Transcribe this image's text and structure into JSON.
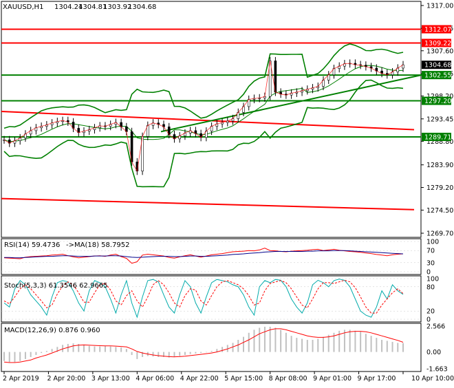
{
  "chart_data": [
    {
      "type": "candlestick",
      "title": "XAUUSD,H1",
      "ohlc": {
        "open": "1304.24",
        "high": "1304.81",
        "low": "1303.92",
        "close": "1304.68"
      },
      "y_ticks": [
        "1317.00",
        "1312.25",
        "1307.60",
        "1302.85",
        "1298.20",
        "1293.45",
        "1288.80",
        "1283.90",
        "1279.20",
        "1274.50",
        "1269.70"
      ],
      "ylim": [
        1269.7,
        1317.0
      ],
      "horizontal_levels": [
        {
          "label": "1312.07",
          "value": 1312.07,
          "color": "#ff0000"
        },
        {
          "label": "1309.22",
          "value": 1309.22,
          "color": "#ff0000"
        },
        {
          "label": "1302.55",
          "value": 1302.55,
          "color": "#008000"
        },
        {
          "label": "1297.20",
          "value": 1297.2,
          "color": "#008000"
        },
        {
          "label": "1289.71",
          "value": 1289.71,
          "color": "#008000"
        }
      ],
      "current_price": {
        "label": "1304.68",
        "value": 1304.68
      },
      "trend_lines": [
        {
          "color": "#ff0000",
          "points": [
            [
              0,
              1295.0
            ],
            [
              600,
              1291.2
            ]
          ]
        },
        {
          "color": "#ff0000",
          "points": [
            [
              0,
              1276.9
            ],
            [
              600,
              1274.6
            ]
          ]
        },
        {
          "color": "#008000",
          "points": [
            [
              232,
              1290.8
            ],
            [
              612,
              1302.6
            ]
          ]
        }
      ],
      "price_series": [
        1289.1,
        1288.4,
        1288.9,
        1289.5,
        1290.3,
        1291.0,
        1291.6,
        1291.9,
        1292.2,
        1292.6,
        1292.9,
        1293.1,
        1292.8,
        1291.5,
        1290.6,
        1290.9,
        1291.2,
        1291.6,
        1292.0,
        1291.9,
        1292.3,
        1292.7,
        1291.8,
        1290.8,
        1284.5,
        1282.6,
        1289.8,
        1292.1,
        1292.6,
        1292.3,
        1291.8,
        1290.2,
        1289.3,
        1289.9,
        1290.5,
        1291.0,
        1290.4,
        1289.6,
        1290.9,
        1291.9,
        1292.4,
        1292.7,
        1293.0,
        1293.5,
        1294.8,
        1296.0,
        1297.5,
        1297.7,
        1297.8,
        1298.1,
        1305.5,
        1299.0,
        1298.6,
        1298.4,
        1298.8,
        1299.0,
        1299.3,
        1299.6,
        1299.9,
        1300.2,
        1301.5,
        1302.6,
        1303.9,
        1304.4,
        1304.9,
        1305.0,
        1304.7,
        1304.6,
        1304.3,
        1304.0,
        1303.4,
        1302.9,
        1302.6,
        1303.2,
        1304.0,
        1304.68
      ],
      "series": [
        {
          "name": "Bollinger Bands",
          "color": "#008000"
        },
        {
          "name": "Moving Average",
          "color": "#ff0000"
        }
      ],
      "x_ticks": [
        "2 Apr 2019",
        "2 Apr 20:00",
        "3 Apr 13:00",
        "4 Apr 06:00",
        "4 Apr 22:00",
        "5 Apr 15:00",
        "8 Apr 08:00",
        "9 Apr 01:00",
        "9 Apr 17:00",
        "10 Apr 10:00"
      ]
    },
    {
      "type": "line",
      "title": "RSI(14) 59.4736",
      "subtitle": "->MA(18) 58.7952",
      "y_ticks": [
        "100",
        "70",
        "30",
        "0"
      ],
      "ylim": [
        0,
        100
      ],
      "series": [
        {
          "name": "RSI(14)",
          "color": "#ff0000",
          "values": [
            46,
            45,
            44,
            43,
            48,
            50,
            51,
            52,
            53,
            55,
            56,
            58,
            53,
            49,
            46,
            48,
            50,
            52,
            53,
            51,
            55,
            58,
            50,
            44,
            28,
            33,
            55,
            58,
            56,
            54,
            52,
            47,
            45,
            49,
            53,
            56,
            52,
            48,
            52,
            56,
            58,
            60,
            63,
            66,
            67,
            68,
            70,
            69,
            72,
            78,
            70,
            69,
            67,
            66,
            68,
            69,
            70,
            71,
            73,
            74,
            70,
            72,
            74,
            71,
            69,
            67,
            66,
            64,
            62,
            60,
            57,
            55,
            53,
            56,
            58,
            59
          ]
        },
        {
          "name": "MA(18)",
          "color": "#00008b",
          "values": [
            47,
            47,
            46,
            46,
            47,
            48,
            49,
            50,
            51,
            51,
            52,
            53,
            53,
            52,
            51,
            51,
            51,
            52,
            52,
            52,
            53,
            53,
            52,
            50,
            48,
            47,
            48,
            49,
            50,
            51,
            51,
            51,
            50,
            50,
            51,
            52,
            52,
            51,
            51,
            52,
            53,
            54,
            55,
            57,
            58,
            59,
            61,
            62,
            63,
            65,
            66,
            67,
            67,
            67,
            67,
            67,
            67,
            68,
            68,
            69,
            69,
            69,
            70,
            70,
            70,
            69,
            68,
            67,
            66,
            65,
            64,
            63,
            62,
            61,
            60,
            59
          ]
        }
      ]
    },
    {
      "type": "line",
      "title": "Stoch(5,3,3) 61.3546 62.9665",
      "y_ticks": [
        "100",
        "80",
        "20",
        "0"
      ],
      "ylim": [
        0,
        100
      ],
      "series": [
        {
          "name": "Main",
          "color": "#00aaaa",
          "values": [
            40,
            30,
            75,
            95,
            85,
            60,
            45,
            30,
            10,
            55,
            90,
            95,
            92,
            70,
            40,
            20,
            70,
            95,
            90,
            80,
            50,
            15,
            60,
            95,
            40,
            5,
            55,
            95,
            98,
            92,
            60,
            30,
            15,
            60,
            95,
            80,
            40,
            15,
            55,
            90,
            98,
            95,
            92,
            85,
            80,
            60,
            30,
            10,
            80,
            95,
            90,
            98,
            96,
            80,
            50,
            30,
            15,
            40,
            85,
            96,
            90,
            80,
            95,
            99,
            96,
            80,
            50,
            20,
            10,
            5,
            30,
            70,
            50,
            85,
            70,
            61
          ]
        },
        {
          "name": "Signal",
          "color": "#ff0000",
          "values": [
            45,
            38,
            55,
            75,
            85,
            75,
            60,
            45,
            28,
            35,
            62,
            82,
            92,
            85,
            65,
            42,
            42,
            65,
            85,
            88,
            72,
            45,
            35,
            58,
            70,
            45,
            30,
            55,
            85,
            95,
            85,
            65,
            40,
            30,
            58,
            75,
            72,
            45,
            35,
            58,
            80,
            92,
            95,
            90,
            85,
            75,
            58,
            35,
            40,
            70,
            88,
            92,
            95,
            90,
            75,
            55,
            35,
            28,
            50,
            75,
            90,
            90,
            88,
            92,
            96,
            92,
            78,
            55,
            30,
            15,
            15,
            35,
            50,
            65,
            75,
            63
          ]
        }
      ]
    },
    {
      "type": "bar",
      "title": "MACD(12,26,9) 0.876 0.960",
      "y_ticks": [
        "2.566",
        "0.00",
        "-1.663"
      ],
      "ylim": [
        -1.663,
        2.566
      ],
      "series": [
        {
          "name": "MACD",
          "color": "#c0c0c0",
          "values": [
            -0.9,
            -1.0,
            -1.0,
            -0.9,
            -0.7,
            -0.5,
            -0.3,
            -0.1,
            0.1,
            0.3,
            0.5,
            0.7,
            0.8,
            0.85,
            0.8,
            0.7,
            0.6,
            0.55,
            0.55,
            0.6,
            0.55,
            0.5,
            0.45,
            0.3,
            -0.3,
            -0.7,
            -0.5,
            -0.4,
            -0.45,
            -0.5,
            -0.5,
            -0.55,
            -0.5,
            -0.4,
            -0.3,
            -0.2,
            -0.15,
            -0.1,
            0.0,
            0.1,
            0.3,
            0.5,
            0.7,
            0.9,
            1.2,
            1.5,
            1.9,
            2.2,
            2.4,
            2.5,
            2.5,
            2.4,
            2.2,
            1.9,
            1.6,
            1.4,
            1.3,
            1.2,
            1.2,
            1.3,
            1.5,
            1.7,
            1.9,
            2.1,
            2.2,
            2.2,
            2.1,
            2.0,
            1.8,
            1.6,
            1.4,
            1.2,
            1.1,
            1.0,
            0.9,
            0.88
          ]
        },
        {
          "name": "Signal",
          "color": "#ff0000",
          "values": [
            -1.0,
            -1.05,
            -1.05,
            -1.0,
            -0.9,
            -0.8,
            -0.6,
            -0.45,
            -0.3,
            -0.1,
            0.1,
            0.3,
            0.45,
            0.6,
            0.68,
            0.7,
            0.68,
            0.65,
            0.62,
            0.6,
            0.6,
            0.58,
            0.55,
            0.5,
            0.3,
            0.05,
            -0.1,
            -0.2,
            -0.3,
            -0.37,
            -0.42,
            -0.46,
            -0.48,
            -0.46,
            -0.42,
            -0.36,
            -0.3,
            -0.24,
            -0.17,
            -0.1,
            0.0,
            0.15,
            0.3,
            0.5,
            0.7,
            0.95,
            1.2,
            1.5,
            1.8,
            2.0,
            2.2,
            2.3,
            2.3,
            2.2,
            2.05,
            1.9,
            1.75,
            1.6,
            1.5,
            1.45,
            1.45,
            1.5,
            1.6,
            1.75,
            1.9,
            2.0,
            2.05,
            2.05,
            2.0,
            1.9,
            1.75,
            1.6,
            1.45,
            1.3,
            1.15,
            0.96
          ]
        }
      ]
    }
  ]
}
